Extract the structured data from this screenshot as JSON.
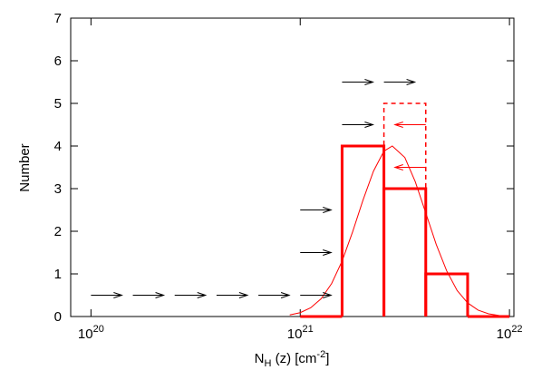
{
  "chart_data": {
    "type": "histogram",
    "xlabel": {
      "main": "N",
      "sub": "H",
      "mid": " (z) [cm",
      "sup": "-2",
      "end": "]"
    },
    "ylabel": "Number",
    "xscale": "log",
    "xlim": [
      8e+19,
      1.05e+22
    ],
    "xticks": [
      {
        "value": 1e+20,
        "label": "10",
        "exponent": "20"
      },
      {
        "value": 1e+21,
        "label": "10",
        "exponent": "21"
      },
      {
        "value": 1e+22,
        "label": "10",
        "exponent": "22"
      }
    ],
    "ylim": [
      0,
      7
    ],
    "yticks": [
      0,
      1,
      2,
      3,
      4,
      5,
      6,
      7
    ],
    "color": "#ff0000",
    "bins": [
      1e+21,
      1.585e+21,
      2.512e+21,
      3.981e+21,
      6.31e+21,
      1e+22
    ],
    "counts": [
      0,
      4,
      3,
      1,
      0
    ],
    "upper_bin": {
      "bins": [
        2.512e+21,
        3.981e+21
      ],
      "counts": [
        5
      ]
    },
    "curve": {
      "x": [
        8.91e+20,
        1e+21,
        1.122e+21,
        1.259e+21,
        1.413e+21,
        1.585e+21,
        1.778e+21,
        1.995e+21,
        2.239e+21,
        2.512e+21,
        2.754e+21,
        3.162e+21,
        3.548e+21,
        3.981e+21,
        4.467e+21,
        5.012e+21,
        5.623e+21,
        6.31e+21,
        7.079e+21,
        7.943e+21,
        8.913e+21,
        1e+22
      ],
      "y": [
        0.037,
        0.091,
        0.205,
        0.418,
        0.774,
        1.3,
        1.98,
        2.73,
        3.41,
        3.88,
        4,
        3.73,
        3.16,
        2.43,
        1.69,
        1.07,
        0.61,
        0.32,
        0.15,
        0.064,
        0.025,
        0.009
      ]
    },
    "arrows": [
      {
        "x": 1e+20,
        "y": 0.5,
        "direction": "right",
        "color": "#000000"
      },
      {
        "x": 1.585e+20,
        "y": 0.5,
        "direction": "right",
        "color": "#000000"
      },
      {
        "x": 2.512e+20,
        "y": 0.5,
        "direction": "right",
        "color": "#000000"
      },
      {
        "x": 3.981e+20,
        "y": 0.5,
        "direction": "right",
        "color": "#000000"
      },
      {
        "x": 6.31e+20,
        "y": 0.5,
        "direction": "right",
        "color": "#000000"
      },
      {
        "x": 1e+21,
        "y": 0.5,
        "direction": "right",
        "color": "#000000"
      },
      {
        "x": 1e+21,
        "y": 1.5,
        "direction": "right",
        "color": "#000000"
      },
      {
        "x": 1e+21,
        "y": 2.5,
        "direction": "right",
        "color": "#000000"
      },
      {
        "x": 1.585e+21,
        "y": 4.5,
        "direction": "right",
        "color": "#000000"
      },
      {
        "x": 1.585e+21,
        "y": 5.5,
        "direction": "right",
        "color": "#000000"
      },
      {
        "x": 2.512e+21,
        "y": 5.5,
        "direction": "right",
        "color": "#000000"
      },
      {
        "x": 3.981e+21,
        "y": 4.5,
        "direction": "left",
        "color": "#ff0000"
      },
      {
        "x": 3.981e+21,
        "y": 3.5,
        "direction": "left",
        "color": "#ff0000"
      }
    ]
  }
}
